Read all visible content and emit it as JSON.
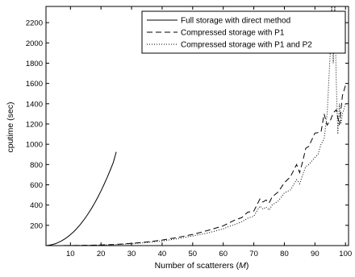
{
  "chart_data": {
    "type": "line",
    "title": "",
    "xlabel": "Number of scatterers (",
    "xlabel_var": "M",
    "xlabel_close": ")",
    "ylabel": "cputime (sec)",
    "xlim": [
      2,
      101
    ],
    "ylim": [
      0,
      2360
    ],
    "xticks": [
      10,
      20,
      30,
      40,
      50,
      60,
      70,
      80,
      90,
      100
    ],
    "yticks": [
      200,
      400,
      600,
      800,
      1000,
      1200,
      1400,
      1600,
      1800,
      2000,
      2200
    ],
    "grid": false,
    "legend_position": "top-right",
    "series": [
      {
        "name": "Full storage with direct method",
        "style": "solid",
        "color": "#000000",
        "x": [
          2,
          3,
          4,
          5,
          6,
          7,
          8,
          9,
          10,
          11,
          12,
          13,
          14,
          15,
          16,
          17,
          18,
          19,
          20,
          21,
          22,
          23,
          24,
          25
        ],
        "y": [
          0,
          4,
          10,
          18,
          30,
          45,
          63,
          84,
          108,
          135,
          166,
          200,
          238,
          279,
          324,
          372,
          424,
          480,
          540,
          604,
          671,
          743,
          818,
          925
        ]
      },
      {
        "name": "Compressed storage with P1",
        "style": "dashed",
        "color": "#000000",
        "x": [
          5,
          10,
          15,
          20,
          25,
          30,
          35,
          40,
          45,
          50,
          55,
          60,
          62,
          64,
          66,
          68,
          70,
          72,
          73,
          74,
          75,
          76,
          78,
          80,
          82,
          84,
          85,
          86,
          87,
          88,
          90,
          92,
          93,
          94,
          95,
          96,
          97,
          98,
          99,
          100
        ],
        "y": [
          0,
          1,
          3,
          6,
          12,
          22,
          36,
          55,
          80,
          110,
          150,
          195,
          225,
          255,
          275,
          330,
          340,
          460,
          430,
          450,
          420,
          480,
          530,
          620,
          680,
          800,
          720,
          830,
          960,
          980,
          1110,
          1120,
          1300,
          1190,
          1230,
          1310,
          1340,
          1190,
          1480,
          1580
        ]
      },
      {
        "name": "Compressed storage with P1 and P2",
        "style": "dotted",
        "color": "#000000",
        "x": [
          5,
          10,
          15,
          20,
          25,
          30,
          35,
          40,
          45,
          50,
          55,
          60,
          62,
          64,
          66,
          68,
          70,
          72,
          73,
          74,
          75,
          76,
          78,
          80,
          82,
          84,
          85,
          86,
          87,
          88,
          90,
          91,
          92,
          93,
          94,
          95,
          95.5,
          96,
          96.5,
          97,
          97.5,
          98,
          98.5,
          99,
          100
        ],
        "y": [
          0,
          1,
          3,
          5,
          10,
          18,
          30,
          45,
          68,
          95,
          125,
          165,
          190,
          210,
          235,
          270,
          290,
          390,
          360,
          380,
          350,
          400,
          440,
          520,
          550,
          650,
          610,
          700,
          780,
          800,
          870,
          900,
          1000,
          1050,
          1300,
          1900,
          2360,
          1800,
          2360,
          1600,
          1100,
          1400,
          1200,
          1300,
          1400
        ]
      }
    ]
  }
}
